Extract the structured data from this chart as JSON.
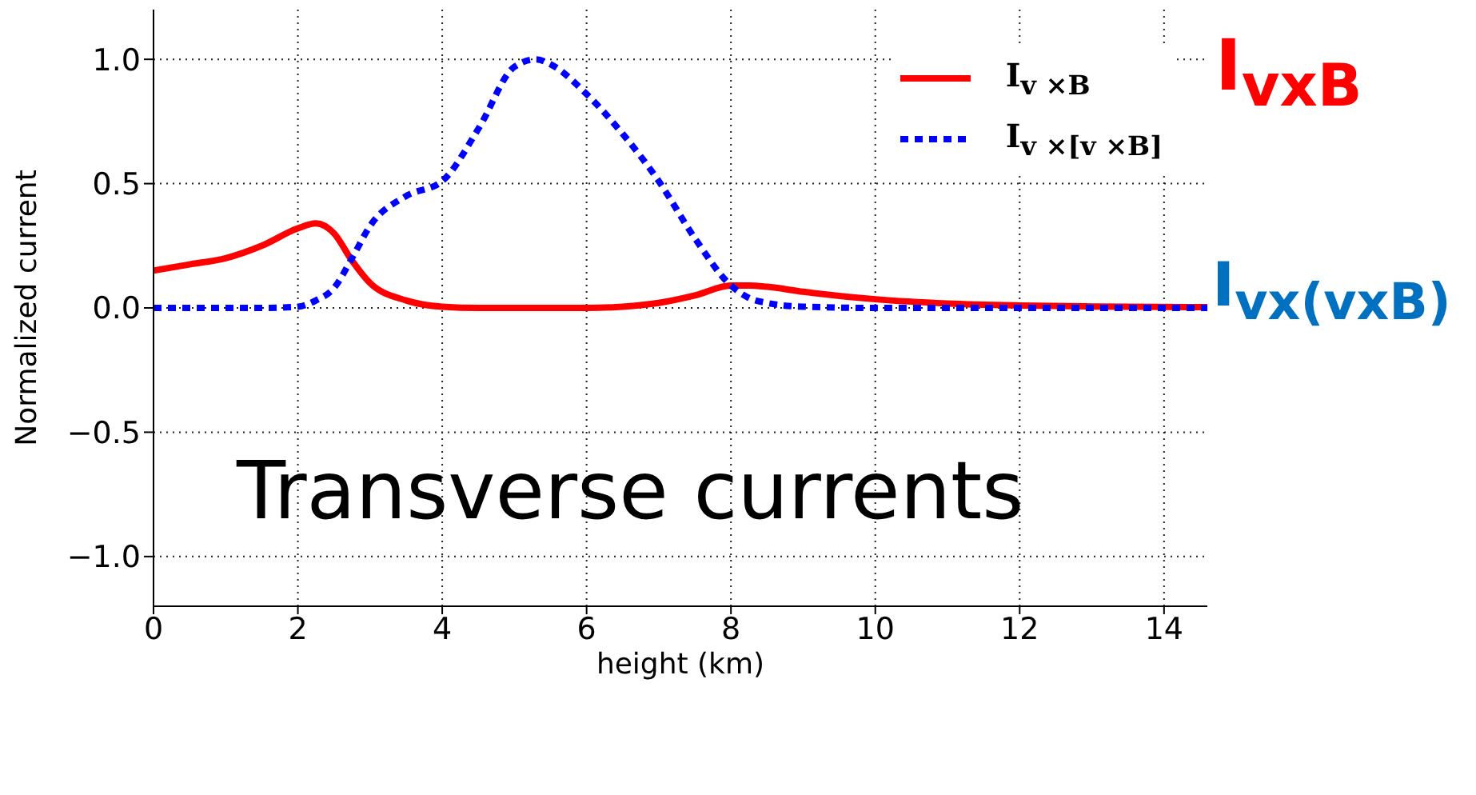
{
  "chart_data": {
    "type": "line",
    "xlabel": "height (km)",
    "ylabel": "Normalized current",
    "x": [
      0,
      0.5,
      1,
      1.5,
      2,
      2.25,
      2.5,
      2.75,
      3,
      3.5,
      4,
      4.5,
      5,
      5.3,
      5.5,
      6,
      6.5,
      7,
      7.5,
      8,
      8.25,
      8.5,
      9,
      10,
      11,
      12,
      13,
      14,
      14.6
    ],
    "series": [
      {
        "name": "I$_{v ×B}$",
        "color": "#ff0000",
        "line_style": "solid",
        "values": [
          0.15,
          0.175,
          0.2,
          0.25,
          0.32,
          0.34,
          0.3,
          0.19,
          0.1,
          0.03,
          0.005,
          0,
          0,
          0,
          0,
          0,
          0.005,
          0.02,
          0.05,
          0.09,
          0.09,
          0.085,
          0.065,
          0.035,
          0.018,
          0.01,
          0.006,
          0.004,
          0.003
        ]
      },
      {
        "name": "I$_{v ×[v ×B]}$",
        "color": "#0000ff",
        "line_style": "dashed",
        "values": [
          0,
          0,
          0,
          0,
          0.005,
          0.03,
          0.08,
          0.2,
          0.33,
          0.45,
          0.51,
          0.72,
          0.97,
          1.0,
          0.98,
          0.86,
          0.7,
          0.51,
          0.28,
          0.09,
          0.04,
          0.02,
          0.005,
          0,
          0,
          0,
          0,
          0,
          0
        ]
      }
    ],
    "xlim": [
      0,
      14.6
    ],
    "xticks": [
      0,
      2,
      4,
      6,
      8,
      10,
      12,
      14
    ],
    "ylim": [
      -1.2,
      1.2
    ],
    "yticks": [
      {
        "value": -1,
        "label": "−1.0"
      },
      {
        "value": -0.5,
        "label": "−0.5"
      },
      {
        "value": 0,
        "label": "0.0"
      },
      {
        "value": 0.5,
        "label": "0.5"
      },
      {
        "value": 1,
        "label": "1.0"
      }
    ],
    "grid": true,
    "legend": "top right",
    "marker": "none",
    "annotations": [
      "I$_{vxB}$",
      "I$_{vx(vxB)}$",
      "Transverse currents"
    ]
  }
}
